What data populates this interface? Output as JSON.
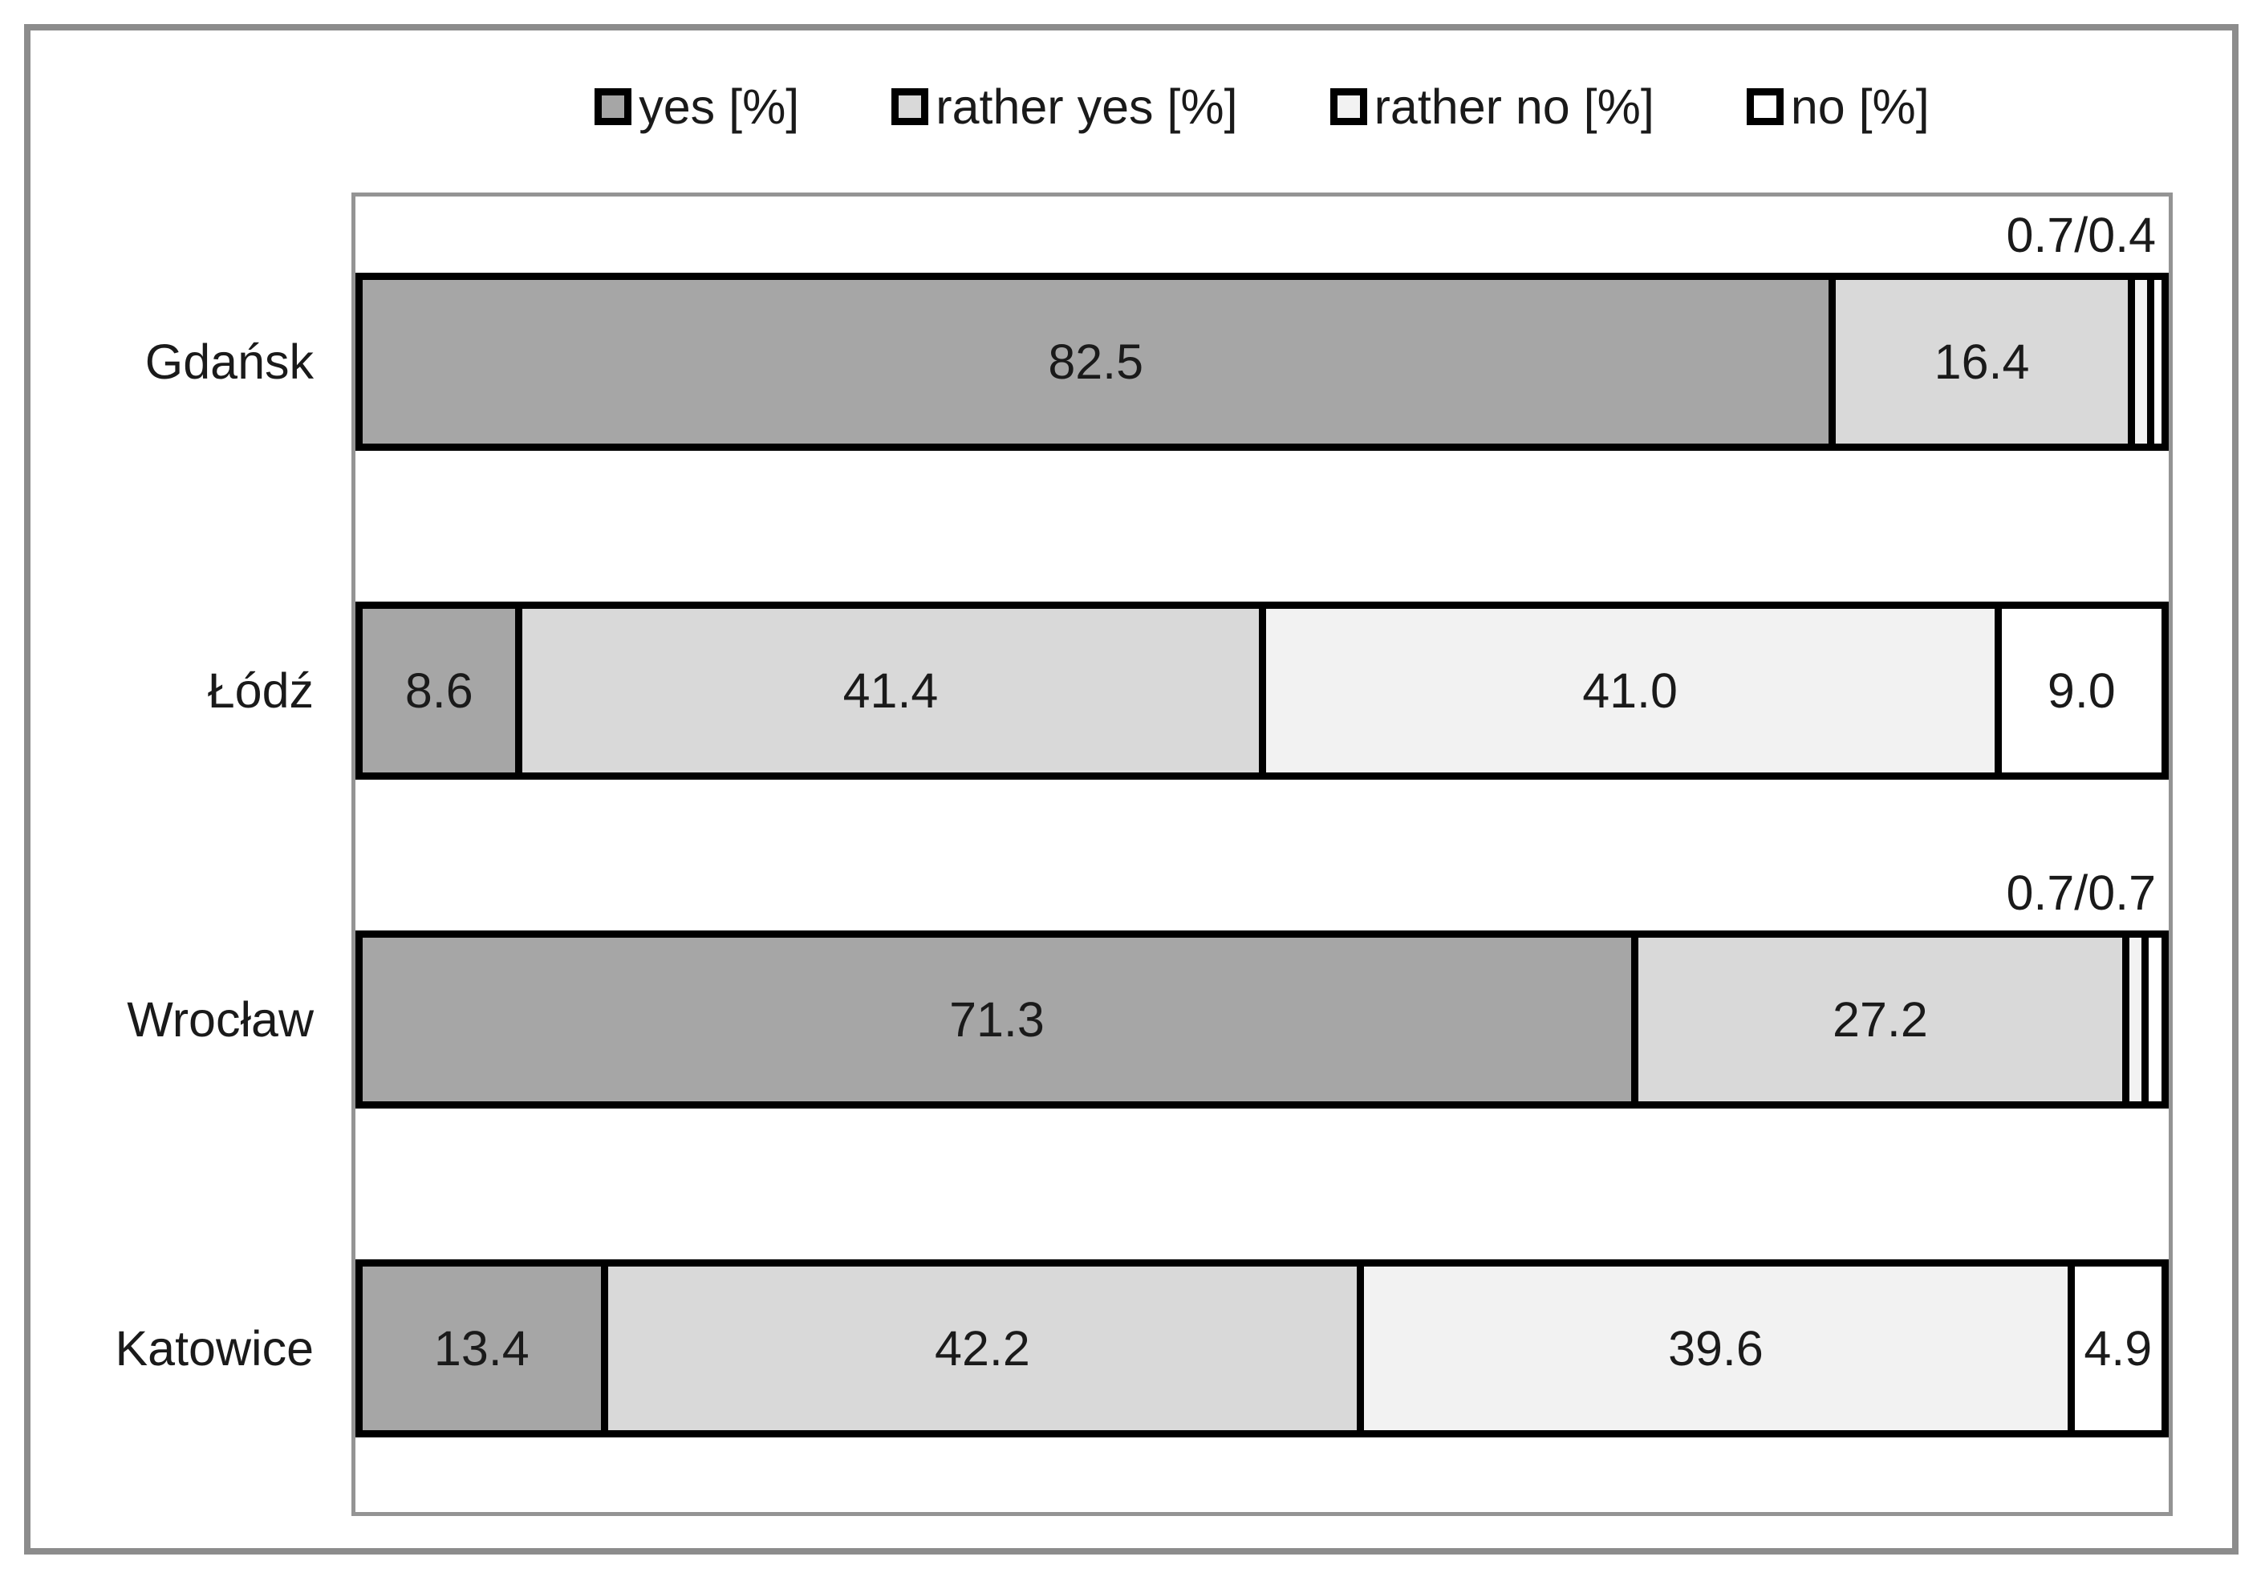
{
  "chart_data": {
    "type": "bar",
    "variant": "horizontal-stacked",
    "categories": [
      "Gdańsk",
      "Łódź",
      "Wrocław",
      "Katowice"
    ],
    "series": [
      {
        "key": "yes",
        "name": "yes [%]",
        "color": "#a6a6a6",
        "values": [
          82.5,
          8.6,
          71.3,
          13.4
        ]
      },
      {
        "key": "rather-yes",
        "name": "rather yes [%]",
        "color": "#d9d9d9",
        "values": [
          16.4,
          41.4,
          27.2,
          42.2
        ]
      },
      {
        "key": "rather-no",
        "name": "rather no [%]",
        "color": "#f2f2f2",
        "values": [
          0.7,
          41.0,
          0.7,
          39.6
        ]
      },
      {
        "key": "no",
        "name": "no [%]",
        "color": "#ffffff",
        "values": [
          0.4,
          9.0,
          0.7,
          4.9
        ]
      }
    ],
    "row_annotations": [
      "0.7/0.4",
      "",
      "0.7/0.7",
      ""
    ],
    "title": "",
    "xlabel": "",
    "ylabel": "",
    "xlim": [
      0,
      100
    ],
    "grid": false,
    "legend_position": "top-center",
    "value_label_min": 3,
    "value_label_decimals": 1,
    "colors": {
      "segment_border": "#000000",
      "plot_border": "#949494",
      "frame_border": "#8c8c8c",
      "text": "#1a1a1a",
      "background": "#ffffff"
    }
  }
}
